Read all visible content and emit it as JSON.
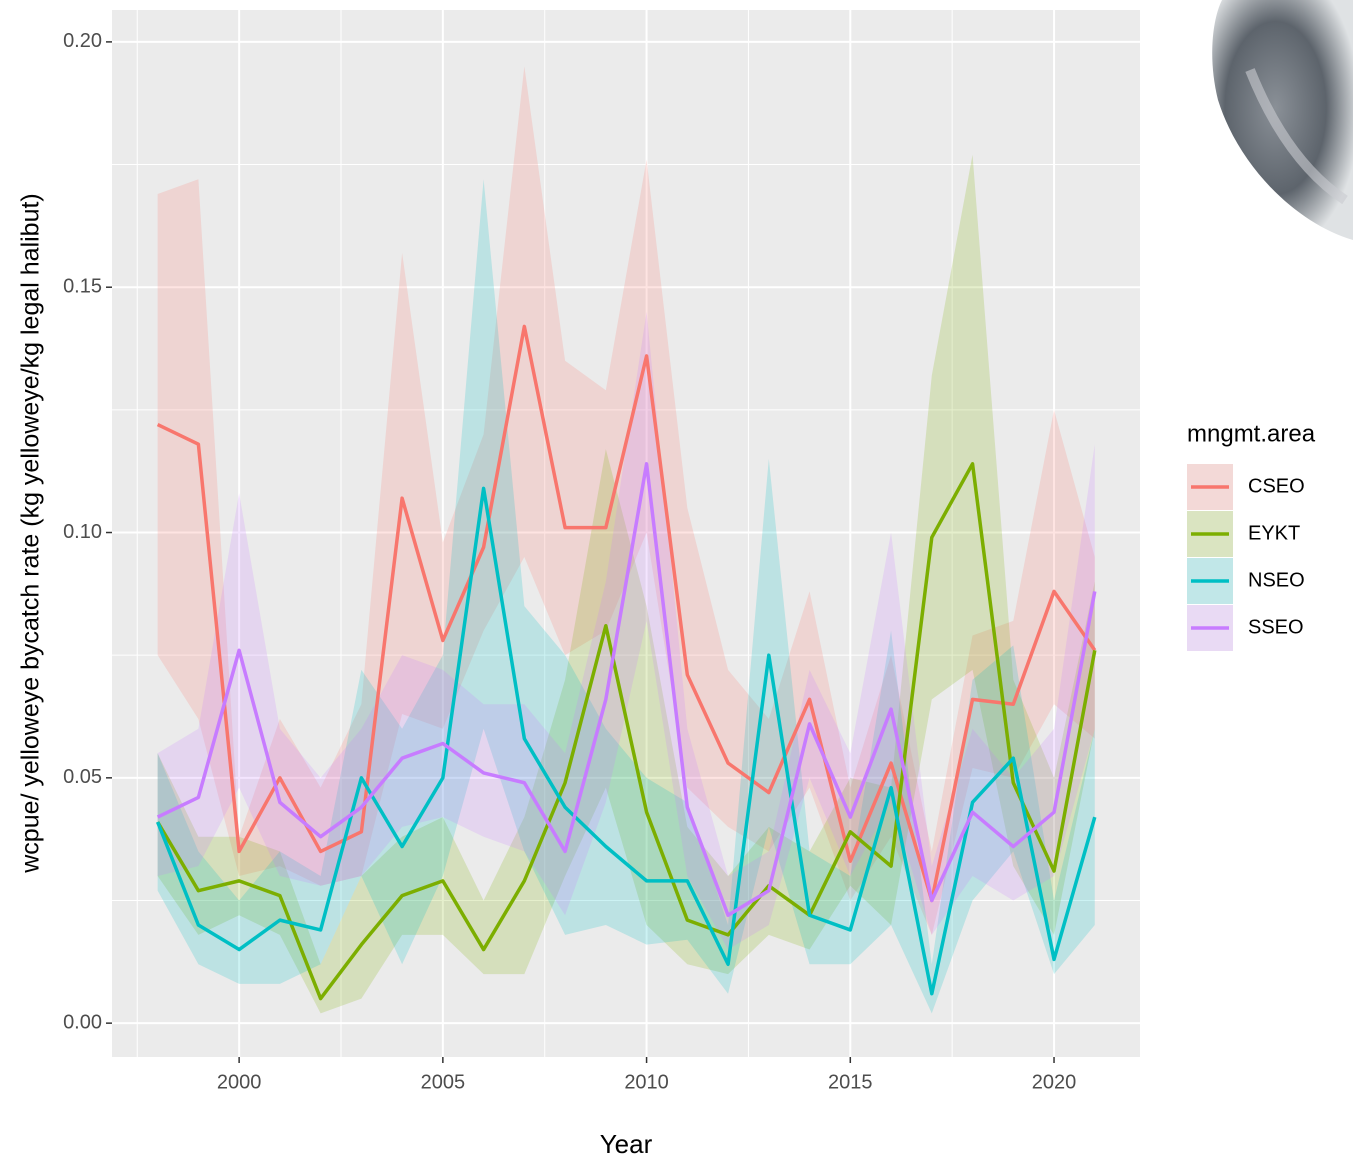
{
  "chart_data": {
    "type": "line",
    "x_label": "Year",
    "y_label": "wcpue/ yelloweye bycatch rate (kg yelloweye/kg legal halibut)",
    "legend_title": "mngmt.area",
    "legend_position": "right",
    "grid": true,
    "x": [
      1998,
      1999,
      2000,
      2001,
      2002,
      2003,
      2004,
      2005,
      2006,
      2007,
      2008,
      2009,
      2010,
      2011,
      2012,
      2013,
      2014,
      2015,
      2016,
      2017,
      2018,
      2019,
      2020,
      2021
    ],
    "xlim": [
      1996.88,
      2022.11
    ],
    "xticks": [
      2000,
      2005,
      2010,
      2015,
      2020
    ],
    "ylim": [
      -0.0069,
      0.2065
    ],
    "yticks": [
      {
        "value": 0,
        "label": "0.00"
      },
      {
        "value": 0.05,
        "label": "0.05"
      },
      {
        "value": 0.1,
        "label": "0.10"
      },
      {
        "value": 0.15,
        "label": "0.15"
      },
      {
        "value": 0.2,
        "label": "0.20"
      }
    ],
    "series": [
      {
        "name": "CSEO",
        "color": "#F8766D",
        "values": [
          0.122,
          0.118,
          0.035,
          0.05,
          0.035,
          0.039,
          0.107,
          0.078,
          0.097,
          0.142,
          0.101,
          0.101,
          0.136,
          0.071,
          0.053,
          0.047,
          0.066,
          0.033,
          0.053,
          0.025,
          0.066,
          0.065,
          0.088,
          0.076
        ],
        "upper": [
          0.169,
          0.172,
          0.038,
          0.062,
          0.048,
          0.065,
          0.157,
          0.098,
          0.12,
          0.195,
          0.135,
          0.129,
          0.176,
          0.105,
          0.072,
          0.062,
          0.088,
          0.048,
          0.075,
          0.035,
          0.079,
          0.082,
          0.125,
          0.095
        ],
        "lower": [
          0.075,
          0.062,
          0.03,
          0.032,
          0.028,
          0.03,
          0.063,
          0.06,
          0.08,
          0.095,
          0.075,
          0.08,
          0.1,
          0.048,
          0.04,
          0.035,
          0.048,
          0.025,
          0.038,
          0.018,
          0.052,
          0.05,
          0.065,
          0.058
        ]
      },
      {
        "name": "EYKT",
        "color": "#7CAE00",
        "values": [
          0.041,
          0.027,
          0.029,
          0.026,
          0.005,
          0.016,
          0.026,
          0.029,
          0.015,
          0.029,
          0.049,
          0.081,
          0.043,
          0.021,
          0.018,
          0.028,
          0.022,
          0.039,
          0.032,
          0.099,
          0.114,
          0.049,
          0.031,
          0.076
        ],
        "upper": [
          0.055,
          0.038,
          0.038,
          0.035,
          0.012,
          0.03,
          0.038,
          0.042,
          0.025,
          0.042,
          0.07,
          0.117,
          0.085,
          0.04,
          0.03,
          0.04,
          0.035,
          0.05,
          0.048,
          0.132,
          0.177,
          0.07,
          0.05,
          0.09
        ],
        "lower": [
          0.03,
          0.018,
          0.022,
          0.018,
          0.002,
          0.005,
          0.018,
          0.018,
          0.01,
          0.01,
          0.03,
          0.048,
          0.02,
          0.012,
          0.01,
          0.018,
          0.015,
          0.028,
          0.02,
          0.066,
          0.072,
          0.032,
          0.018,
          0.06
        ]
      },
      {
        "name": "NSEO",
        "color": "#00BFC4",
        "values": [
          0.041,
          0.02,
          0.015,
          0.021,
          0.019,
          0.05,
          0.036,
          0.05,
          0.109,
          0.058,
          0.044,
          0.036,
          0.029,
          0.029,
          0.012,
          0.075,
          0.022,
          0.019,
          0.048,
          0.006,
          0.045,
          0.054,
          0.013,
          0.042
        ],
        "upper": [
          0.055,
          0.035,
          0.025,
          0.035,
          0.03,
          0.072,
          0.06,
          0.075,
          0.172,
          0.085,
          0.075,
          0.06,
          0.05,
          0.045,
          0.02,
          0.115,
          0.035,
          0.03,
          0.08,
          0.012,
          0.07,
          0.077,
          0.025,
          0.06
        ],
        "lower": [
          0.027,
          0.012,
          0.008,
          0.008,
          0.012,
          0.03,
          0.012,
          0.03,
          0.06,
          0.035,
          0.018,
          0.02,
          0.016,
          0.017,
          0.006,
          0.04,
          0.012,
          0.012,
          0.02,
          0.002,
          0.025,
          0.035,
          0.01,
          0.02
        ]
      },
      {
        "name": "SSEO",
        "color": "#C77CFF",
        "values": [
          0.042,
          0.046,
          0.076,
          0.045,
          0.038,
          0.044,
          0.054,
          0.057,
          0.051,
          0.049,
          0.035,
          0.066,
          0.114,
          0.044,
          0.022,
          0.027,
          0.061,
          0.042,
          0.064,
          0.025,
          0.043,
          0.036,
          0.043,
          0.088
        ],
        "upper": [
          0.055,
          0.06,
          0.108,
          0.06,
          0.05,
          0.06,
          0.075,
          0.072,
          0.065,
          0.065,
          0.055,
          0.09,
          0.145,
          0.06,
          0.03,
          0.035,
          0.072,
          0.055,
          0.1,
          0.032,
          0.06,
          0.05,
          0.06,
          0.118
        ],
        "lower": [
          0.03,
          0.032,
          0.048,
          0.03,
          0.028,
          0.03,
          0.04,
          0.042,
          0.038,
          0.035,
          0.022,
          0.045,
          0.082,
          0.03,
          0.015,
          0.02,
          0.05,
          0.03,
          0.045,
          0.018,
          0.03,
          0.025,
          0.03,
          0.06
        ]
      }
    ]
  }
}
